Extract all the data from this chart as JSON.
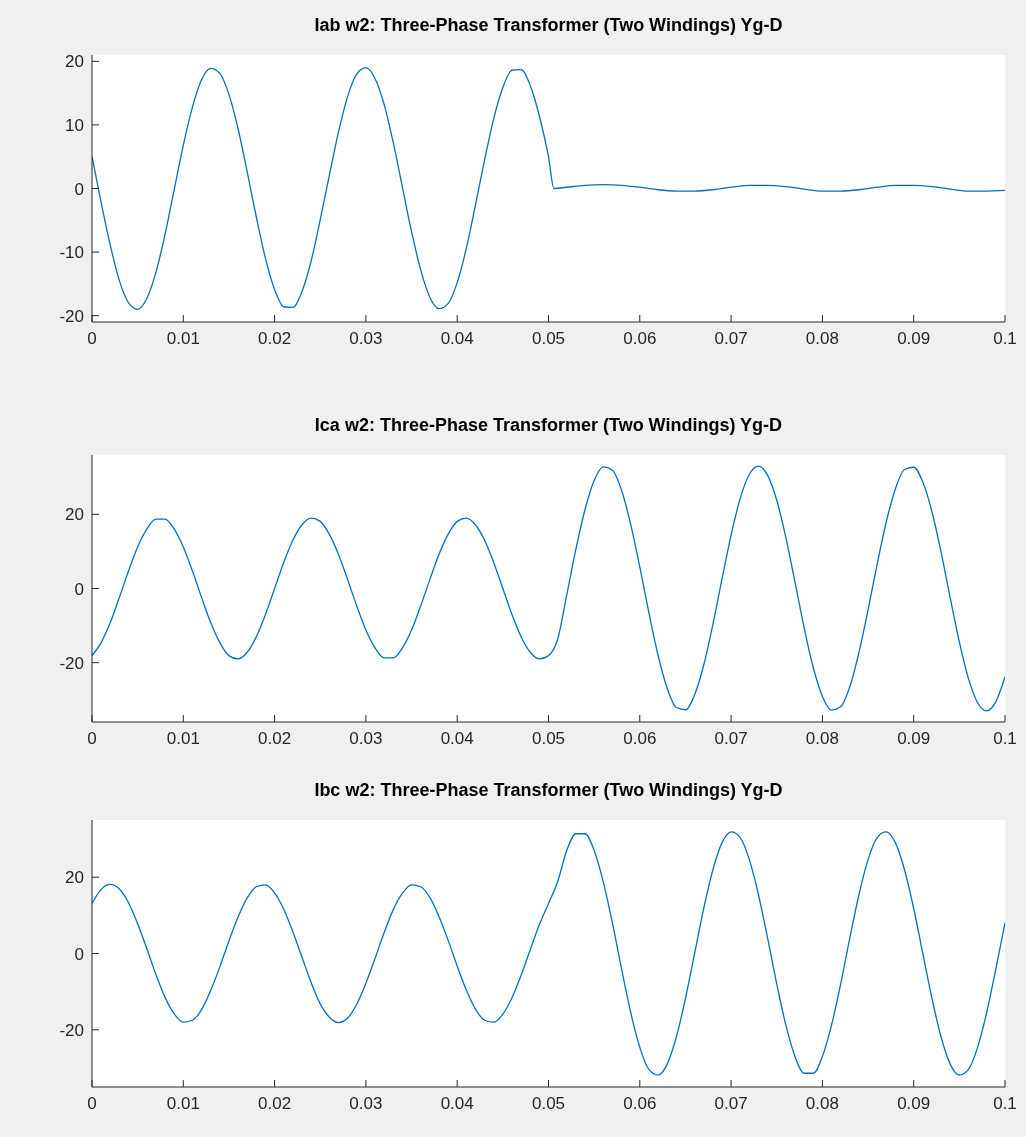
{
  "chart_data": [
    {
      "type": "line",
      "title": "Iab w2: Three-Phase Transformer (Two Windings) Yg-D",
      "xlim": [
        0,
        0.1
      ],
      "xticks": [
        0,
        0.01,
        0.02,
        0.03,
        0.04,
        0.05,
        0.06,
        0.07,
        0.08,
        0.09,
        0.1
      ],
      "ylim": [
        -21,
        21
      ],
      "yticks": [
        -20,
        -10,
        0,
        10,
        20
      ],
      "series": [
        {
          "color": "#0072bd",
          "x": [
            0,
            0.001,
            0.002,
            0.003,
            0.004,
            0.005,
            0.006,
            0.007,
            0.008,
            0.009,
            0.01,
            0.011,
            0.012,
            0.013,
            0.014,
            0.015,
            0.016,
            0.017,
            0.018,
            0.019,
            0.02,
            0.021,
            0.022,
            0.023,
            0.024,
            0.025,
            0.026,
            0.027,
            0.028,
            0.029,
            0.03,
            0.031,
            0.032,
            0.033,
            0.034,
            0.035,
            0.036,
            0.037,
            0.038,
            0.039,
            0.04,
            0.041,
            0.042,
            0.043,
            0.044,
            0.045,
            0.046,
            0.047,
            0.048,
            0.049,
            0.05,
            0.0506,
            0.052,
            0.054,
            0.056,
            0.058,
            0.06,
            0.062,
            0.064,
            0.066,
            0.068,
            0.07,
            0.072,
            0.074,
            0.076,
            0.078,
            0.08,
            0.082,
            0.084,
            0.086,
            0.088,
            0.09,
            0.092,
            0.094,
            0.096,
            0.098,
            0.1
          ],
          "values": [
            5.0,
            -2.2,
            -8.9,
            -14.5,
            -18.0,
            -19.0,
            -17.3,
            -13.2,
            -7.2,
            -0.2,
            6.8,
            12.8,
            17.1,
            18.9,
            18.1,
            14.8,
            9.4,
            2.6,
            -4.5,
            -11.0,
            -15.9,
            -18.6,
            -18.7,
            -16.2,
            -11.4,
            -4.9,
            2.1,
            8.9,
            14.5,
            18.0,
            19.0,
            17.3,
            13.2,
            7.2,
            0.2,
            -6.8,
            -12.8,
            -17.1,
            -18.9,
            -18.1,
            -14.8,
            -9.4,
            -2.6,
            4.5,
            11.0,
            15.9,
            18.6,
            18.7,
            16.2,
            11.4,
            5.0,
            0,
            0.2,
            0.5,
            0.6,
            0.5,
            0.2,
            -0.2,
            -0.4,
            -0.4,
            -0.2,
            0.2,
            0.5,
            0.5,
            0.3,
            -0.1,
            -0.4,
            -0.4,
            -0.2,
            0.2,
            0.5,
            0.5,
            0.3,
            -0.1,
            -0.4,
            -0.4,
            -0.3
          ]
        }
      ]
    },
    {
      "type": "line",
      "title": "Ica w2: Three-Phase Transformer (Two Windings) Yg-D",
      "xlim": [
        0,
        0.1
      ],
      "xticks": [
        0,
        0.01,
        0.02,
        0.03,
        0.04,
        0.05,
        0.06,
        0.07,
        0.08,
        0.09,
        0.1
      ],
      "ylim": [
        -36,
        36
      ],
      "yticks": [
        -20,
        0,
        20
      ],
      "series": [
        {
          "color": "#0072bd",
          "x": [
            0,
            0.001,
            0.002,
            0.003,
            0.004,
            0.005,
            0.006,
            0.007,
            0.008,
            0.009,
            0.01,
            0.011,
            0.012,
            0.013,
            0.014,
            0.015,
            0.016,
            0.017,
            0.018,
            0.019,
            0.02,
            0.021,
            0.022,
            0.023,
            0.024,
            0.025,
            0.026,
            0.027,
            0.028,
            0.029,
            0.03,
            0.031,
            0.032,
            0.033,
            0.034,
            0.035,
            0.036,
            0.037,
            0.038,
            0.039,
            0.04,
            0.041,
            0.042,
            0.043,
            0.044,
            0.045,
            0.046,
            0.047,
            0.048,
            0.049,
            0.05,
            0.051,
            0.052,
            0.053,
            0.054,
            0.055,
            0.056,
            0.057,
            0.058,
            0.059,
            0.06,
            0.061,
            0.062,
            0.063,
            0.064,
            0.065,
            0.066,
            0.067,
            0.068,
            0.069,
            0.07,
            0.071,
            0.072,
            0.073,
            0.074,
            0.075,
            0.076,
            0.077,
            0.078,
            0.079,
            0.08,
            0.081,
            0.082,
            0.083,
            0.084,
            0.085,
            0.086,
            0.087,
            0.088,
            0.089,
            0.09,
            0.091,
            0.092,
            0.093,
            0.094,
            0.095,
            0.096,
            0.097,
            0.098,
            0.099,
            0.1
          ],
          "values": [
            -18.1,
            -14.6,
            -9.2,
            -2.4,
            4.7,
            11.2,
            16.0,
            18.7,
            18.7,
            16.0,
            11.2,
            4.7,
            -2.4,
            -9.2,
            -14.6,
            -18.1,
            -19.0,
            -17.2,
            -13.0,
            -7.0,
            0,
            7.0,
            13.0,
            17.2,
            19.0,
            18.1,
            14.6,
            9.2,
            2.4,
            -4.7,
            -11.2,
            -16.0,
            -18.7,
            -18.7,
            -16.0,
            -11.2,
            -4.7,
            2.4,
            9.2,
            14.6,
            18.1,
            19.0,
            17.2,
            13.0,
            7.0,
            0,
            -7.0,
            -13.0,
            -17.2,
            -19.0,
            -18.1,
            -13.7,
            -1.7,
            10.6,
            21.3,
            29.1,
            32.8,
            31.9,
            26.5,
            17.3,
            5.8,
            -6.6,
            -18.0,
            -26.9,
            -32.1,
            -32.7,
            -28.7,
            -20.7,
            -9.8,
            2.5,
            14.4,
            24.3,
            30.8,
            33.0,
            30.5,
            23.8,
            13.7,
            1.7,
            -10.6,
            -21.3,
            -29.1,
            -32.8,
            -31.9,
            -26.5,
            -17.3,
            -5.8,
            6.6,
            18.0,
            26.9,
            32.1,
            32.7,
            28.7,
            20.7,
            9.8,
            -2.5,
            -14.4,
            -24.3,
            -30.8,
            -33.0,
            -30.5,
            -23.8
          ]
        }
      ]
    },
    {
      "type": "line",
      "title": "Ibc w2: Three-Phase Transformer (Two Windings) Yg-D",
      "xlim": [
        0,
        0.1
      ],
      "xticks": [
        0,
        0.01,
        0.02,
        0.03,
        0.04,
        0.05,
        0.06,
        0.07,
        0.08,
        0.09,
        0.1
      ],
      "ylim": [
        -35,
        35
      ],
      "yticks": [
        -20,
        0,
        20
      ],
      "series": [
        {
          "color": "#0072bd",
          "x": [
            0,
            0.001,
            0.002,
            0.003,
            0.004,
            0.005,
            0.006,
            0.007,
            0.008,
            0.009,
            0.01,
            0.011,
            0.012,
            0.013,
            0.014,
            0.015,
            0.016,
            0.017,
            0.018,
            0.019,
            0.02,
            0.021,
            0.022,
            0.023,
            0.024,
            0.025,
            0.026,
            0.027,
            0.028,
            0.029,
            0.03,
            0.031,
            0.032,
            0.033,
            0.034,
            0.035,
            0.036,
            0.037,
            0.038,
            0.039,
            0.04,
            0.041,
            0.042,
            0.043,
            0.044,
            0.045,
            0.046,
            0.047,
            0.048,
            0.049,
            0.05,
            0.051,
            0.052,
            0.053,
            0.054,
            0.055,
            0.056,
            0.057,
            0.058,
            0.059,
            0.06,
            0.061,
            0.062,
            0.063,
            0.064,
            0.065,
            0.066,
            0.067,
            0.068,
            0.069,
            0.07,
            0.071,
            0.072,
            0.073,
            0.074,
            0.075,
            0.076,
            0.077,
            0.078,
            0.079,
            0.08,
            0.081,
            0.082,
            0.083,
            0.084,
            0.085,
            0.086,
            0.087,
            0.088,
            0.089,
            0.09,
            0.091,
            0.092,
            0.093,
            0.094,
            0.095,
            0.096,
            0.097,
            0.098,
            0.099,
            0.1
          ],
          "values": [
            13.1,
            16.8,
            18.1,
            16.9,
            13.3,
            7.8,
            1.3,
            -5.5,
            -11.5,
            -15.8,
            -18.0,
            -17.5,
            -14.7,
            -9.7,
            -3.5,
            3.3,
            9.6,
            14.6,
            17.5,
            18.0,
            15.9,
            11.6,
            5.7,
            -1.0,
            -7.6,
            -13.2,
            -16.7,
            -18.1,
            -16.9,
            -13.3,
            -7.8,
            -1.3,
            5.5,
            11.5,
            15.8,
            18.0,
            17.5,
            14.7,
            9.7,
            3.5,
            -3.3,
            -9.6,
            -14.6,
            -17.5,
            -18.0,
            -15.9,
            -11.6,
            -5.7,
            1.0,
            7.6,
            13.1,
            18.8,
            27.0,
            31.4,
            31.4,
            27.0,
            18.8,
            8.0,
            -4.0,
            -15.4,
            -24.6,
            -30.4,
            -31.9,
            -29.0,
            -21.9,
            -11.8,
            0,
            11.8,
            21.9,
            29.0,
            31.9,
            30.4,
            24.6,
            15.4,
            4.0,
            -8.0,
            -18.8,
            -27.0,
            -31.4,
            -31.4,
            -27.0,
            -18.8,
            -8.0,
            4.0,
            15.4,
            24.6,
            30.4,
            31.9,
            29.0,
            21.9,
            11.8,
            0,
            -11.8,
            -21.9,
            -29.0,
            -31.9,
            -30.4,
            -24.6,
            -15.4,
            -4.0,
            8.0
          ]
        }
      ]
    }
  ]
}
